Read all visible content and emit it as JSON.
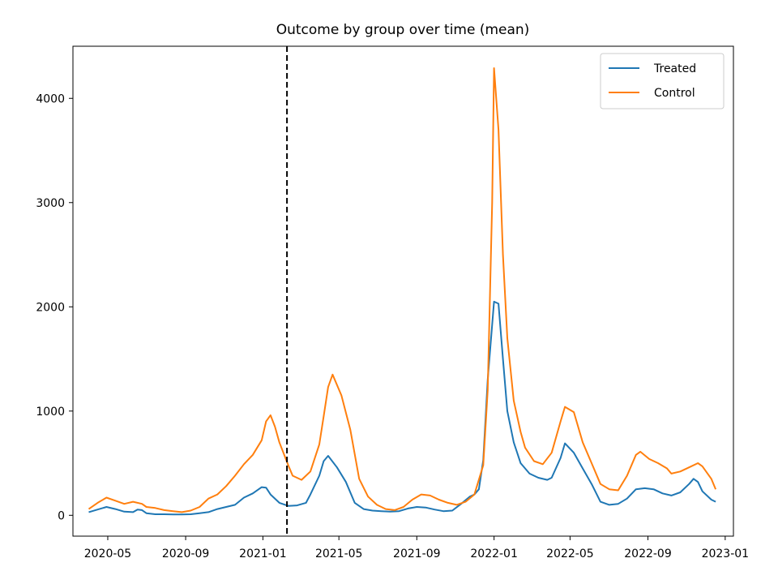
{
  "chart_data": {
    "type": "line",
    "title": "Outcome by group over time (mean)",
    "xlabel": "",
    "ylabel": "",
    "x_ticks": [
      "2020-05",
      "2020-09",
      "2021-01",
      "2021-05",
      "2021-09",
      "2022-01",
      "2022-05",
      "2022-09",
      "2023-01"
    ],
    "y_ticks": [
      0,
      1000,
      2000,
      3000,
      4000
    ],
    "xlim": [
      "2020-03-07",
      "2023-01-14"
    ],
    "ylim": [
      -200,
      4500
    ],
    "grid": false,
    "legend_position": "top-right",
    "vline": {
      "x": "2021-02-08",
      "style": "dashed",
      "color": "#000000"
    },
    "series": [
      {
        "name": "Treated",
        "color": "#1f77b4",
        "points": [
          [
            "2020-04-01",
            30
          ],
          [
            "2020-04-15",
            55
          ],
          [
            "2020-04-29",
            80
          ],
          [
            "2020-05-13",
            60
          ],
          [
            "2020-05-27",
            35
          ],
          [
            "2020-06-10",
            30
          ],
          [
            "2020-06-17",
            55
          ],
          [
            "2020-06-24",
            50
          ],
          [
            "2020-07-01",
            20
          ],
          [
            "2020-07-15",
            10
          ],
          [
            "2020-07-29",
            10
          ],
          [
            "2020-08-12",
            8
          ],
          [
            "2020-08-26",
            8
          ],
          [
            "2020-09-09",
            10
          ],
          [
            "2020-09-23",
            20
          ],
          [
            "2020-10-07",
            30
          ],
          [
            "2020-10-21",
            60
          ],
          [
            "2020-11-04",
            80
          ],
          [
            "2020-11-18",
            100
          ],
          [
            "2020-12-02",
            170
          ],
          [
            "2020-12-16",
            210
          ],
          [
            "2020-12-30",
            270
          ],
          [
            "2021-01-06",
            265
          ],
          [
            "2021-01-13",
            200
          ],
          [
            "2021-01-27",
            120
          ],
          [
            "2021-02-10",
            90
          ],
          [
            "2021-02-24",
            95
          ],
          [
            "2021-03-10",
            120
          ],
          [
            "2021-03-17",
            200
          ],
          [
            "2021-03-31",
            380
          ],
          [
            "2021-04-07",
            520
          ],
          [
            "2021-04-14",
            570
          ],
          [
            "2021-04-28",
            460
          ],
          [
            "2021-05-12",
            320
          ],
          [
            "2021-05-26",
            120
          ],
          [
            "2021-06-09",
            60
          ],
          [
            "2021-06-23",
            45
          ],
          [
            "2021-07-07",
            40
          ],
          [
            "2021-07-21",
            35
          ],
          [
            "2021-08-04",
            40
          ],
          [
            "2021-08-18",
            65
          ],
          [
            "2021-09-01",
            80
          ],
          [
            "2021-09-15",
            75
          ],
          [
            "2021-09-29",
            55
          ],
          [
            "2021-10-13",
            40
          ],
          [
            "2021-10-27",
            45
          ],
          [
            "2021-11-10",
            110
          ],
          [
            "2021-11-24",
            180
          ],
          [
            "2021-12-01",
            200
          ],
          [
            "2021-12-08",
            250
          ],
          [
            "2021-12-15",
            530
          ],
          [
            "2021-12-22",
            1300
          ],
          [
            "2022-01-01",
            2050
          ],
          [
            "2022-01-08",
            2030
          ],
          [
            "2022-01-15",
            1500
          ],
          [
            "2022-01-22",
            1000
          ],
          [
            "2022-02-01",
            700
          ],
          [
            "2022-02-12",
            500
          ],
          [
            "2022-02-26",
            400
          ],
          [
            "2022-03-12",
            360
          ],
          [
            "2022-03-26",
            340
          ],
          [
            "2022-04-02",
            360
          ],
          [
            "2022-04-16",
            550
          ],
          [
            "2022-04-23",
            690
          ],
          [
            "2022-05-07",
            600
          ],
          [
            "2022-05-21",
            450
          ],
          [
            "2022-06-04",
            300
          ],
          [
            "2022-06-18",
            130
          ],
          [
            "2022-07-02",
            100
          ],
          [
            "2022-07-16",
            110
          ],
          [
            "2022-07-30",
            160
          ],
          [
            "2022-08-13",
            250
          ],
          [
            "2022-08-27",
            260
          ],
          [
            "2022-09-10",
            250
          ],
          [
            "2022-09-24",
            210
          ],
          [
            "2022-10-08",
            190
          ],
          [
            "2022-10-22",
            220
          ],
          [
            "2022-11-05",
            300
          ],
          [
            "2022-11-12",
            350
          ],
          [
            "2022-11-19",
            320
          ],
          [
            "2022-11-26",
            230
          ],
          [
            "2022-12-10",
            150
          ],
          [
            "2022-12-17",
            130
          ]
        ]
      },
      {
        "name": "Control",
        "color": "#ff7f0e",
        "points": [
          [
            "2020-04-01",
            60
          ],
          [
            "2020-04-15",
            120
          ],
          [
            "2020-04-29",
            170
          ],
          [
            "2020-05-13",
            140
          ],
          [
            "2020-05-27",
            110
          ],
          [
            "2020-06-10",
            130
          ],
          [
            "2020-06-24",
            110
          ],
          [
            "2020-07-01",
            80
          ],
          [
            "2020-07-15",
            70
          ],
          [
            "2020-07-29",
            50
          ],
          [
            "2020-08-12",
            40
          ],
          [
            "2020-08-26",
            30
          ],
          [
            "2020-09-09",
            45
          ],
          [
            "2020-09-23",
            80
          ],
          [
            "2020-10-07",
            160
          ],
          [
            "2020-10-21",
            200
          ],
          [
            "2020-11-04",
            280
          ],
          [
            "2020-11-18",
            380
          ],
          [
            "2020-12-02",
            490
          ],
          [
            "2020-12-16",
            580
          ],
          [
            "2020-12-30",
            720
          ],
          [
            "2021-01-06",
            900
          ],
          [
            "2021-01-13",
            960
          ],
          [
            "2021-01-20",
            850
          ],
          [
            "2021-01-27",
            700
          ],
          [
            "2021-02-10",
            480
          ],
          [
            "2021-02-17",
            380
          ],
          [
            "2021-03-03",
            340
          ],
          [
            "2021-03-17",
            420
          ],
          [
            "2021-03-31",
            680
          ],
          [
            "2021-04-07",
            950
          ],
          [
            "2021-04-14",
            1230
          ],
          [
            "2021-04-21",
            1350
          ],
          [
            "2021-05-05",
            1150
          ],
          [
            "2021-05-19",
            820
          ],
          [
            "2021-06-02",
            350
          ],
          [
            "2021-06-16",
            180
          ],
          [
            "2021-06-30",
            100
          ],
          [
            "2021-07-14",
            60
          ],
          [
            "2021-07-28",
            50
          ],
          [
            "2021-08-11",
            80
          ],
          [
            "2021-08-25",
            150
          ],
          [
            "2021-09-08",
            200
          ],
          [
            "2021-09-22",
            190
          ],
          [
            "2021-10-06",
            150
          ],
          [
            "2021-10-20",
            120
          ],
          [
            "2021-11-03",
            100
          ],
          [
            "2021-11-17",
            130
          ],
          [
            "2021-12-01",
            200
          ],
          [
            "2021-12-15",
            480
          ],
          [
            "2021-12-22",
            1200
          ],
          [
            "2021-12-29",
            3000
          ],
          [
            "2022-01-01",
            4290
          ],
          [
            "2022-01-08",
            3700
          ],
          [
            "2022-01-15",
            2500
          ],
          [
            "2022-01-22",
            1700
          ],
          [
            "2022-02-01",
            1100
          ],
          [
            "2022-02-12",
            800
          ],
          [
            "2022-02-19",
            650
          ],
          [
            "2022-03-05",
            520
          ],
          [
            "2022-03-19",
            490
          ],
          [
            "2022-04-02",
            600
          ],
          [
            "2022-04-16",
            900
          ],
          [
            "2022-04-23",
            1040
          ],
          [
            "2022-05-07",
            990
          ],
          [
            "2022-05-21",
            700
          ],
          [
            "2022-06-04",
            500
          ],
          [
            "2022-06-18",
            300
          ],
          [
            "2022-07-02",
            250
          ],
          [
            "2022-07-16",
            240
          ],
          [
            "2022-07-30",
            380
          ],
          [
            "2022-08-13",
            580
          ],
          [
            "2022-08-20",
            610
          ],
          [
            "2022-09-03",
            540
          ],
          [
            "2022-09-17",
            500
          ],
          [
            "2022-10-01",
            450
          ],
          [
            "2022-10-08",
            400
          ],
          [
            "2022-10-22",
            420
          ],
          [
            "2022-11-05",
            460
          ],
          [
            "2022-11-19",
            500
          ],
          [
            "2022-11-26",
            470
          ],
          [
            "2022-12-10",
            350
          ],
          [
            "2022-12-17",
            250
          ]
        ]
      }
    ]
  }
}
